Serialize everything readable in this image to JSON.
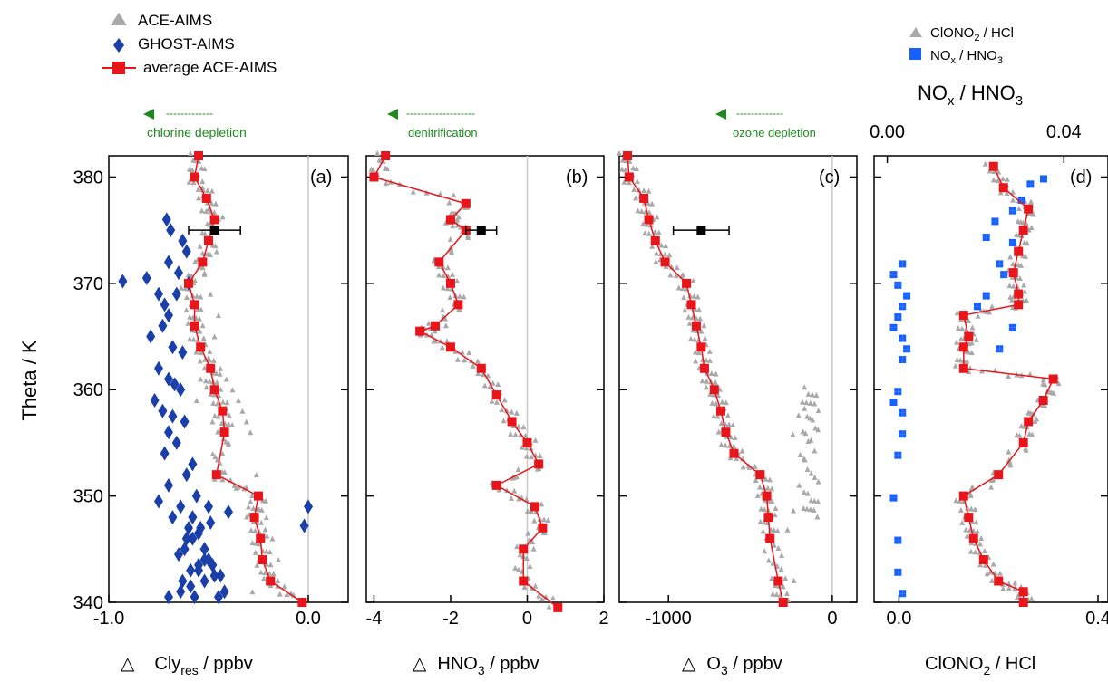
{
  "colors": {
    "gray": "#a9a9a9",
    "blue": "#1a3fa8",
    "bright_blue": "#1560ff",
    "red": "#e8151b",
    "black": "#000000",
    "green": "#1e8a1e"
  },
  "legend_left": {
    "items": [
      {
        "label": "ACE-AIMS",
        "marker": "triangle-gray"
      },
      {
        "label": "GHOST-AIMS",
        "marker": "diamond-blue"
      },
      {
        "label": "average ACE-AIMS",
        "marker": "square-red-line"
      }
    ]
  },
  "legend_right": {
    "items": [
      {
        "label": "ClONO",
        "sub": "2",
        "tail": " / HCl",
        "marker": "triangle-gray"
      },
      {
        "label": "NO",
        "sub": "x",
        "tail": " / HNO",
        "sub2": "3",
        "marker": "square-blue"
      }
    ]
  },
  "y_axis_label": "Theta / K",
  "panel_labels": [
    "(a)",
    "(b)",
    "(c)",
    "(d)"
  ],
  "arrows": [
    {
      "dashes": "-------------",
      "text": "chlorine depletion"
    },
    {
      "dashes": "-------------------",
      "text": "denitrification"
    },
    {
      "dashes": "-------------",
      "text": "ozone depletion"
    }
  ],
  "x_labels": [
    {
      "prefix": "△",
      "main": "Cly",
      "sub": "res",
      "tail": " / ppbv"
    },
    {
      "prefix": "△",
      "main": "HNO",
      "sub": "3",
      "tail": "  / ppbv"
    },
    {
      "prefix": "△",
      "main": "O",
      "sub": "3",
      "tail": "  / ppbv"
    },
    {
      "prefix": "",
      "main": "ClONO",
      "sub": "2",
      "tail": " / HCl"
    }
  ],
  "top_axis_d": {
    "main": "NO",
    "sub": "x",
    "tail": " / HNO",
    "sub2": "3"
  },
  "chart_data": [
    {
      "type": "scatter",
      "panel": "a",
      "xlim": [
        -1.0,
        0.2
      ],
      "ylim": [
        340,
        382
      ],
      "xticks": [
        -1.0,
        0.0
      ],
      "xticklabels": [
        "-1.0",
        "0.0"
      ],
      "yticks": [
        340,
        350,
        360,
        370,
        380
      ],
      "yticklabels": [
        "340",
        "350",
        "360",
        "370",
        "380"
      ],
      "zero_line": 0.0,
      "series": [
        {
          "name": "average ACE-AIMS",
          "x": [
            -0.55,
            -0.57,
            -0.51,
            -0.47,
            -0.5,
            -0.53,
            -0.6,
            -0.57,
            -0.57,
            -0.54,
            -0.49,
            -0.47,
            -0.43,
            -0.42,
            -0.46,
            -0.25,
            -0.27,
            -0.24,
            -0.23,
            -0.19,
            -0.03
          ],
          "y": [
            382,
            380,
            378,
            376,
            374,
            372,
            370,
            368,
            366,
            364,
            362,
            360,
            358,
            356,
            352,
            350,
            348,
            346,
            344,
            342,
            340
          ]
        },
        {
          "name": "GHOST-AIMS",
          "x": [
            -0.71,
            -0.69,
            -0.63,
            -0.61,
            -0.7,
            -0.65,
            -0.6,
            -0.75,
            -0.81,
            -0.66,
            -0.72,
            -0.7,
            -0.93,
            -0.73,
            -0.79,
            -0.68,
            -0.63,
            -0.75,
            -0.7,
            -0.67,
            -0.64,
            -0.77,
            -0.73,
            -0.68,
            -0.62,
            -0.7,
            -0.66,
            -0.72,
            -0.58,
            -0.61,
            -0.7,
            -0.75,
            -0.64,
            -0.68,
            -0.6,
            -0.55,
            -0.58,
            -0.62,
            -0.65,
            -0.52,
            -0.55,
            -0.59,
            -0.47,
            -0.52,
            -0.59,
            -0.64,
            -0.7,
            -0.57,
            -0.61,
            -0.52,
            -0.5,
            -0.55,
            -0.48,
            -0.44,
            -0.63,
            -0.58,
            -0.54,
            -0.5,
            -0.56,
            -0.49,
            -0.4,
            -0.45,
            -0.42,
            0.0,
            -0.02
          ],
          "y": [
            376,
            375,
            374,
            373,
            372,
            371,
            370,
            369,
            370.5,
            369,
            368,
            367,
            370.2,
            366,
            365,
            364,
            363.5,
            362,
            361,
            360.5,
            360,
            359,
            358,
            357.5,
            357,
            356,
            355,
            354,
            353,
            352,
            351,
            349.5,
            349,
            348,
            347,
            346.5,
            346,
            345,
            344.5,
            344,
            343.5,
            343,
            342.5,
            342,
            341.5,
            341,
            340.5,
            340.5,
            346,
            345,
            344,
            343,
            343.5,
            342.5,
            342,
            348,
            347,
            349,
            350,
            347.5,
            348.5,
            340.5,
            341,
            349,
            347.2
          ]
        },
        {
          "name": "ACE-AIMS",
          "marker": "triangle",
          "x": [
            -0.53,
            -0.5,
            -0.48,
            -0.46,
            -0.52,
            -0.49,
            -0.45,
            -0.47,
            -0.5,
            -0.54,
            -0.56,
            -0.48,
            -0.44,
            -0.41,
            -0.38,
            -0.35,
            -0.33,
            -0.31,
            -0.29,
            -0.26,
            -0.24,
            -0.21,
            -0.18,
            -0.15,
            -0.45,
            -0.43,
            -0.4,
            -0.37,
            -0.3,
            -0.28
          ],
          "y": [
            379,
            377,
            375,
            373,
            371,
            369,
            367,
            365,
            363,
            361,
            359,
            357,
            362,
            361,
            360,
            359,
            358,
            357,
            356,
            352,
            350,
            348,
            346,
            344,
            352,
            354,
            355,
            351,
            349,
            341
          ]
        }
      ],
      "errorbar": {
        "x": -0.47,
        "y": 375,
        "xerr": 0.13,
        "yerr": 0.4
      }
    },
    {
      "type": "scatter",
      "panel": "b",
      "xlim": [
        -4.2,
        2.0
      ],
      "ylim": [
        340,
        382
      ],
      "xticks": [
        -4,
        -2,
        0,
        2
      ],
      "xticklabels": [
        "-4",
        "-2",
        "0",
        "2"
      ],
      "zero_line": 0.0,
      "series": [
        {
          "name": "average ACE-AIMS",
          "x": [
            -3.7,
            -4.0,
            -1.6,
            -2.0,
            -1.6,
            -2.3,
            -2.0,
            -1.8,
            -2.4,
            -2.8,
            -2.0,
            -1.2,
            -0.8,
            -0.4,
            0.0,
            0.3,
            -0.8,
            0.2,
            0.4,
            -0.1,
            -0.1,
            0.8
          ],
          "y": [
            382,
            380,
            377.5,
            376,
            375,
            372,
            370,
            368,
            366,
            365.5,
            364,
            362,
            359.5,
            357,
            355,
            353,
            351,
            349,
            347,
            345,
            342,
            339.5
          ]
        }
      ],
      "errorbar": {
        "x": -1.2,
        "y": 375,
        "xerr": 0.4,
        "yerr": 0.4
      }
    },
    {
      "type": "scatter",
      "panel": "c",
      "xlim": [
        -1300,
        150
      ],
      "ylim": [
        340,
        382
      ],
      "xticks": [
        -1000,
        0
      ],
      "xticklabels": [
        "-1000",
        "0"
      ],
      "zero_line": 0.0,
      "series": [
        {
          "name": "average ACE-AIMS",
          "x": [
            -1250,
            -1240,
            -1150,
            -1120,
            -1080,
            -1020,
            -890,
            -860,
            -830,
            -800,
            -780,
            -720,
            -680,
            -650,
            -600,
            -440,
            -400,
            -390,
            -380,
            -330,
            -300,
            -160,
            -120,
            -150,
            -130,
            -120
          ],
          "y": [
            382,
            380,
            378,
            376,
            374,
            372,
            370,
            368,
            366,
            364,
            362,
            360,
            358,
            356,
            354,
            352,
            350,
            348,
            346,
            342,
            340,
            360,
            358,
            355,
            350,
            348
          ]
        }
      ],
      "errorbar": {
        "x": -800,
        "y": 375,
        "xerr": 170,
        "yerr": 0.4
      }
    },
    {
      "type": "scatter",
      "panel": "d",
      "xlim": [
        -0.05,
        0.42
      ],
      "ylim": [
        340,
        382
      ],
      "xticks": [
        0.0,
        0.4
      ],
      "xticklabels": [
        "0.0",
        "0.4"
      ],
      "top_xlim": [
        -0.003,
        0.05
      ],
      "top_xticks": [
        0.0,
        0.04
      ],
      "top_xticklabels": [
        "0.00",
        "0.04"
      ],
      "series": [
        {
          "name": "average ACE-AIMS",
          "x": [
            0.19,
            0.21,
            0.26,
            0.25,
            0.24,
            0.23,
            0.24,
            0.24,
            0.13,
            0.14,
            0.13,
            0.13,
            0.31,
            0.29,
            0.26,
            0.25,
            0.2,
            0.13,
            0.14,
            0.15,
            0.17,
            0.2,
            0.25,
            0.25
          ],
          "y": [
            381,
            379,
            377,
            375,
            373,
            371,
            369,
            368,
            367,
            365,
            364,
            362,
            361,
            359,
            357,
            355,
            352,
            350,
            348,
            346,
            344,
            342,
            341,
            340
          ]
        },
        {
          "name": "NOx / HNO3",
          "axis": "top",
          "x": [
            0.035,
            0.032,
            0.03,
            0.028,
            0.024,
            0.022,
            0.028,
            0.025,
            0.026,
            0.022,
            0.02,
            0.028,
            0.025,
            0.003,
            0.001,
            0.002,
            0.004,
            0.003,
            0.002,
            0.001,
            0.003,
            0.004,
            0.003,
            0.002,
            0.001,
            0.003,
            0.003,
            0.002,
            0.001,
            0.002,
            0.002,
            0.003
          ],
          "y": [
            380,
            379.5,
            378,
            377,
            376,
            374.5,
            374,
            372,
            371,
            369,
            368,
            366,
            364,
            372,
            371,
            370,
            369,
            368,
            367,
            366,
            365,
            364,
            363,
            360,
            359,
            358,
            356,
            354,
            350,
            346,
            343,
            341
          ]
        }
      ]
    }
  ]
}
